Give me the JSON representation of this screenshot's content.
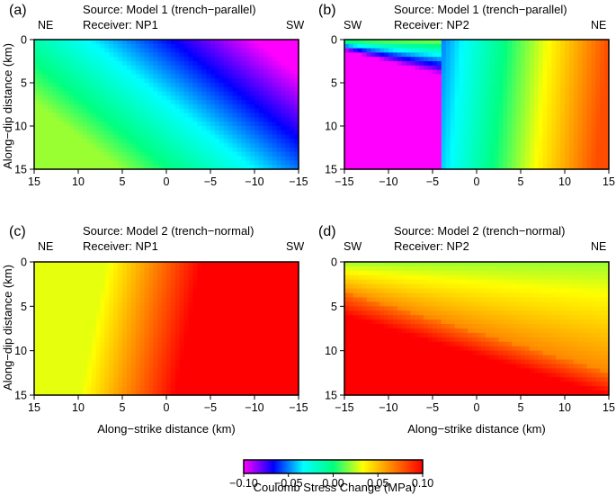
{
  "chart_data": [
    {
      "type": "heatmap",
      "panel": "(a)",
      "source": "Source: Model 1 (trench−parallel)",
      "receiver": "Receiver: NP1",
      "dir_left": "NE",
      "dir_right": "SW",
      "xlim": [
        15,
        -15
      ],
      "ylim": [
        0,
        15
      ],
      "xticks": [
        "15",
        "10",
        "5",
        "0",
        "−5",
        "−10",
        "−15"
      ],
      "yticks": [
        "0",
        "5",
        "10",
        "15"
      ],
      "xlabel": "",
      "ylabel": "Along−dip distance (km)",
      "field": "model1_np1",
      "value_range_MPa": [
        -0.1,
        0.02
      ]
    },
    {
      "type": "heatmap",
      "panel": "(b)",
      "source": "Source: Model 1 (trench−parallel)",
      "receiver": "Receiver: NP2",
      "dir_left": "SW",
      "dir_right": "NE",
      "xlim": [
        -15,
        15
      ],
      "ylim": [
        0,
        15
      ],
      "xticks": [
        "−15",
        "−10",
        "−5",
        "0",
        "5",
        "10",
        "15"
      ],
      "yticks": [
        "0",
        "5",
        "10",
        "15"
      ],
      "xlabel": "",
      "ylabel": "",
      "field": "model1_np2",
      "value_range_MPa": [
        -0.1,
        0.08
      ]
    },
    {
      "type": "heatmap",
      "panel": "(c)",
      "source": "Source: Model 2 (trench−normal)",
      "receiver": "Receiver: NP1",
      "dir_left": "NE",
      "dir_right": "SW",
      "xlim": [
        15,
        -15
      ],
      "ylim": [
        0,
        15
      ],
      "xticks": [
        "15",
        "10",
        "5",
        "0",
        "−5",
        "−10",
        "−15"
      ],
      "yticks": [
        "0",
        "5",
        "10",
        "15"
      ],
      "xlabel": "Along−strike distance (km)",
      "ylabel": "Along−dip distance (km)",
      "field": "model2_np1",
      "value_range_MPa": [
        0.03,
        0.1
      ]
    },
    {
      "type": "heatmap",
      "panel": "(d)",
      "source": "Source: Model 2 (trench−normal)",
      "receiver": "Receiver: NP2",
      "dir_left": "SW",
      "dir_right": "NE",
      "xlim": [
        -15,
        15
      ],
      "ylim": [
        0,
        15
      ],
      "xticks": [
        "−15",
        "−10",
        "−5",
        "0",
        "5",
        "10",
        "15"
      ],
      "yticks": [
        "0",
        "5",
        "10",
        "15"
      ],
      "xlabel": "Along−strike distance (km)",
      "ylabel": "",
      "field": "model2_np2",
      "value_range_MPa": [
        0.02,
        0.1
      ]
    }
  ],
  "colorbar": {
    "label": "Coulomb Stress Change (MPa)",
    "range": [
      -0.1,
      0.1
    ],
    "ticks": [
      "−0.10",
      "−0.05",
      "0.00",
      "0.05",
      "0.10"
    ],
    "tick_values": [
      -0.1,
      -0.05,
      0.0,
      0.05,
      0.1
    ],
    "colors": [
      "#ff00ff",
      "#0000ff",
      "#00ffff",
      "#00ff80",
      "#ffff00",
      "#ff8000",
      "#ff0000"
    ]
  }
}
